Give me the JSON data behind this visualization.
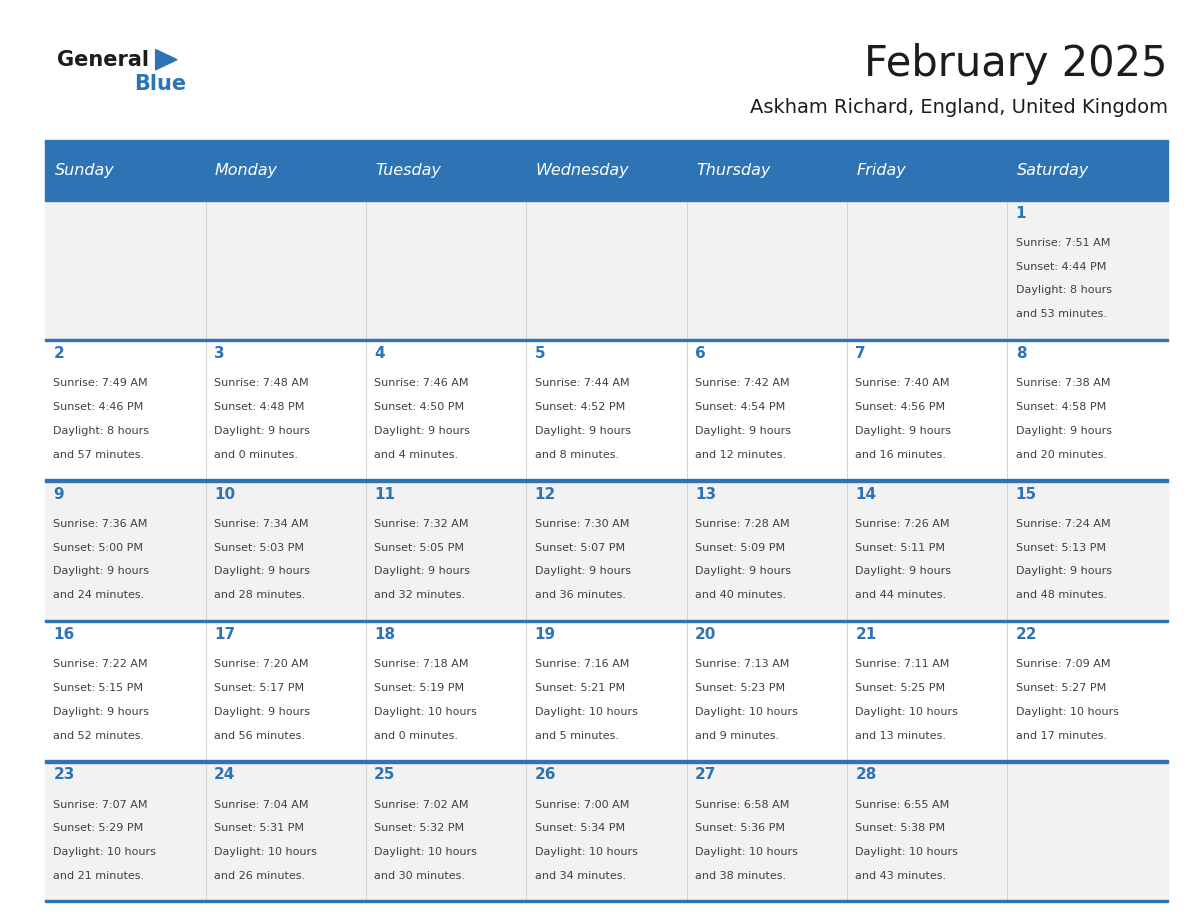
{
  "title": "February 2025",
  "subtitle": "Askham Richard, England, United Kingdom",
  "days_of_week": [
    "Sunday",
    "Monday",
    "Tuesday",
    "Wednesday",
    "Thursday",
    "Friday",
    "Saturday"
  ],
  "header_bg": "#2E74B5",
  "header_text": "#FFFFFF",
  "row_bg_light": "#F2F2F2",
  "row_bg_white": "#FFFFFF",
  "separator_color": "#2E74B5",
  "cell_text_color": "#404040",
  "date_text_color": "#2E74B5",
  "grid_line_color": "#CCCCCC",
  "calendar_data": [
    [
      {
        "day": null
      },
      {
        "day": null
      },
      {
        "day": null
      },
      {
        "day": null
      },
      {
        "day": null
      },
      {
        "day": null
      },
      {
        "day": 1,
        "sunrise": "7:51 AM",
        "sunset": "4:44 PM",
        "daylight_line1": "Daylight: 8 hours",
        "daylight_line2": "and 53 minutes."
      }
    ],
    [
      {
        "day": 2,
        "sunrise": "7:49 AM",
        "sunset": "4:46 PM",
        "daylight_line1": "Daylight: 8 hours",
        "daylight_line2": "and 57 minutes."
      },
      {
        "day": 3,
        "sunrise": "7:48 AM",
        "sunset": "4:48 PM",
        "daylight_line1": "Daylight: 9 hours",
        "daylight_line2": "and 0 minutes."
      },
      {
        "day": 4,
        "sunrise": "7:46 AM",
        "sunset": "4:50 PM",
        "daylight_line1": "Daylight: 9 hours",
        "daylight_line2": "and 4 minutes."
      },
      {
        "day": 5,
        "sunrise": "7:44 AM",
        "sunset": "4:52 PM",
        "daylight_line1": "Daylight: 9 hours",
        "daylight_line2": "and 8 minutes."
      },
      {
        "day": 6,
        "sunrise": "7:42 AM",
        "sunset": "4:54 PM",
        "daylight_line1": "Daylight: 9 hours",
        "daylight_line2": "and 12 minutes."
      },
      {
        "day": 7,
        "sunrise": "7:40 AM",
        "sunset": "4:56 PM",
        "daylight_line1": "Daylight: 9 hours",
        "daylight_line2": "and 16 minutes."
      },
      {
        "day": 8,
        "sunrise": "7:38 AM",
        "sunset": "4:58 PM",
        "daylight_line1": "Daylight: 9 hours",
        "daylight_line2": "and 20 minutes."
      }
    ],
    [
      {
        "day": 9,
        "sunrise": "7:36 AM",
        "sunset": "5:00 PM",
        "daylight_line1": "Daylight: 9 hours",
        "daylight_line2": "and 24 minutes."
      },
      {
        "day": 10,
        "sunrise": "7:34 AM",
        "sunset": "5:03 PM",
        "daylight_line1": "Daylight: 9 hours",
        "daylight_line2": "and 28 minutes."
      },
      {
        "day": 11,
        "sunrise": "7:32 AM",
        "sunset": "5:05 PM",
        "daylight_line1": "Daylight: 9 hours",
        "daylight_line2": "and 32 minutes."
      },
      {
        "day": 12,
        "sunrise": "7:30 AM",
        "sunset": "5:07 PM",
        "daylight_line1": "Daylight: 9 hours",
        "daylight_line2": "and 36 minutes."
      },
      {
        "day": 13,
        "sunrise": "7:28 AM",
        "sunset": "5:09 PM",
        "daylight_line1": "Daylight: 9 hours",
        "daylight_line2": "and 40 minutes."
      },
      {
        "day": 14,
        "sunrise": "7:26 AM",
        "sunset": "5:11 PM",
        "daylight_line1": "Daylight: 9 hours",
        "daylight_line2": "and 44 minutes."
      },
      {
        "day": 15,
        "sunrise": "7:24 AM",
        "sunset": "5:13 PM",
        "daylight_line1": "Daylight: 9 hours",
        "daylight_line2": "and 48 minutes."
      }
    ],
    [
      {
        "day": 16,
        "sunrise": "7:22 AM",
        "sunset": "5:15 PM",
        "daylight_line1": "Daylight: 9 hours",
        "daylight_line2": "and 52 minutes."
      },
      {
        "day": 17,
        "sunrise": "7:20 AM",
        "sunset": "5:17 PM",
        "daylight_line1": "Daylight: 9 hours",
        "daylight_line2": "and 56 minutes."
      },
      {
        "day": 18,
        "sunrise": "7:18 AM",
        "sunset": "5:19 PM",
        "daylight_line1": "Daylight: 10 hours",
        "daylight_line2": "and 0 minutes."
      },
      {
        "day": 19,
        "sunrise": "7:16 AM",
        "sunset": "5:21 PM",
        "daylight_line1": "Daylight: 10 hours",
        "daylight_line2": "and 5 minutes."
      },
      {
        "day": 20,
        "sunrise": "7:13 AM",
        "sunset": "5:23 PM",
        "daylight_line1": "Daylight: 10 hours",
        "daylight_line2": "and 9 minutes."
      },
      {
        "day": 21,
        "sunrise": "7:11 AM",
        "sunset": "5:25 PM",
        "daylight_line1": "Daylight: 10 hours",
        "daylight_line2": "and 13 minutes."
      },
      {
        "day": 22,
        "sunrise": "7:09 AM",
        "sunset": "5:27 PM",
        "daylight_line1": "Daylight: 10 hours",
        "daylight_line2": "and 17 minutes."
      }
    ],
    [
      {
        "day": 23,
        "sunrise": "7:07 AM",
        "sunset": "5:29 PM",
        "daylight_line1": "Daylight: 10 hours",
        "daylight_line2": "and 21 minutes."
      },
      {
        "day": 24,
        "sunrise": "7:04 AM",
        "sunset": "5:31 PM",
        "daylight_line1": "Daylight: 10 hours",
        "daylight_line2": "and 26 minutes."
      },
      {
        "day": 25,
        "sunrise": "7:02 AM",
        "sunset": "5:32 PM",
        "daylight_line1": "Daylight: 10 hours",
        "daylight_line2": "and 30 minutes."
      },
      {
        "day": 26,
        "sunrise": "7:00 AM",
        "sunset": "5:34 PM",
        "daylight_line1": "Daylight: 10 hours",
        "daylight_line2": "and 34 minutes."
      },
      {
        "day": 27,
        "sunrise": "6:58 AM",
        "sunset": "5:36 PM",
        "daylight_line1": "Daylight: 10 hours",
        "daylight_line2": "and 38 minutes."
      },
      {
        "day": 28,
        "sunrise": "6:55 AM",
        "sunset": "5:38 PM",
        "daylight_line1": "Daylight: 10 hours",
        "daylight_line2": "and 43 minutes."
      },
      {
        "day": null
      }
    ]
  ],
  "fig_width": 11.88,
  "fig_height": 9.18,
  "dpi": 100
}
